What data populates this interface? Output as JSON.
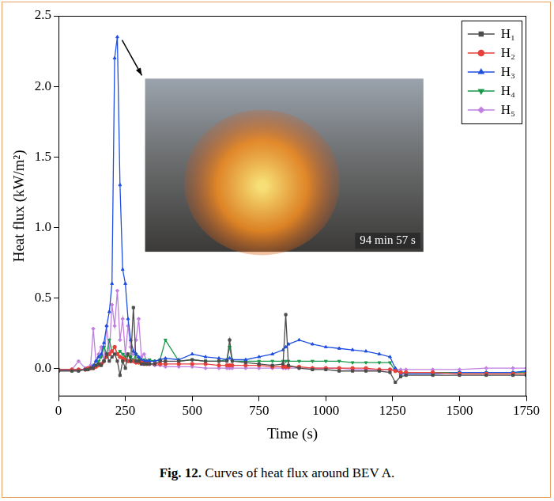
{
  "chart_data": {
    "type": "line",
    "x_label": "Time (s)",
    "y_label": "Heat flux (kW/m²)",
    "annotation": "94 min 57 s",
    "caption": "Fig. 12. Curves of heat flux around BEV A.",
    "xlim": [
      0,
      1750
    ],
    "xticks": [
      0,
      250,
      500,
      750,
      1000,
      1250,
      1500,
      1750
    ],
    "ylim": [
      -0.2,
      2.5
    ],
    "yticks": [
      {
        "value": 0,
        "label": "0.0"
      },
      0.5,
      {
        "value": 1,
        "label": "1.0"
      },
      1.5,
      {
        "value": 2,
        "label": "2.0"
      },
      2.5
    ],
    "grid": false,
    "legend": "upper right",
    "x": [
      0,
      50,
      75,
      100,
      110,
      120,
      130,
      140,
      150,
      160,
      170,
      180,
      190,
      200,
      210,
      220,
      230,
      240,
      250,
      260,
      270,
      280,
      290,
      300,
      310,
      320,
      330,
      340,
      360,
      380,
      400,
      450,
      500,
      550,
      600,
      630,
      640,
      650,
      700,
      750,
      800,
      840,
      850,
      860,
      900,
      950,
      1000,
      1050,
      1100,
      1150,
      1200,
      1240,
      1260,
      1280,
      1300,
      1400,
      1500,
      1600,
      1700,
      1750
    ],
    "series": [
      {
        "name": "H₁",
        "color": "#4d4d4d",
        "marker": "square",
        "values": [
          -0.02,
          -0.02,
          -0.02,
          -0.01,
          -0.01,
          0,
          0,
          0.02,
          0.03,
          0.02,
          0.05,
          0.1,
          0.05,
          0.08,
          0.1,
          0.05,
          -0.05,
          0.05,
          0,
          0.1,
          0.05,
          0.43,
          0.05,
          0.05,
          0.03,
          0.03,
          0.03,
          0.03,
          0.03,
          0.05,
          0.05,
          0.05,
          0.06,
          0.05,
          0.05,
          0.05,
          0.2,
          0.05,
          0.04,
          0.03,
          0.02,
          0.03,
          0.38,
          0.02,
          0,
          -0.01,
          -0.01,
          -0.02,
          -0.02,
          -0.02,
          -0.02,
          -0.03,
          -0.1,
          -0.06,
          -0.05,
          -0.05,
          -0.05,
          -0.05,
          -0.05,
          -0.05
        ]
      },
      {
        "name": "H₂",
        "color": "#e8413a",
        "marker": "circle",
        "values": [
          -0.01,
          -0.01,
          -0.01,
          -0.01,
          0,
          0,
          0,
          0.01,
          0.02,
          0.03,
          0.05,
          0.08,
          0.1,
          0.12,
          0.15,
          0.1,
          0.08,
          0.07,
          0.06,
          0.05,
          0.05,
          0.05,
          0.04,
          0.04,
          0.04,
          0.03,
          0.03,
          0.03,
          0.03,
          0.03,
          0.03,
          0.03,
          0.03,
          0.03,
          0.02,
          0.02,
          0.02,
          0.02,
          0.02,
          0.02,
          0.01,
          0.01,
          0.01,
          0.01,
          0.01,
          0,
          0,
          0,
          0,
          0,
          -0.01,
          -0.01,
          -0.02,
          -0.03,
          -0.03,
          -0.03,
          -0.04,
          -0.04,
          -0.04,
          -0.04
        ]
      },
      {
        "name": "H₃",
        "color": "#1f4fe0",
        "marker": "triangle",
        "values": [
          -0.01,
          -0.01,
          -0.01,
          -0.01,
          -0.01,
          0,
          0.02,
          0.05,
          0.08,
          0.1,
          0.18,
          0.3,
          0.4,
          0.6,
          2.2,
          2.35,
          1.3,
          0.7,
          0.6,
          0.35,
          0.2,
          0.12,
          0.1,
          0.08,
          0.06,
          0.05,
          0.05,
          0.05,
          0.05,
          0.06,
          0.07,
          0.06,
          0.1,
          0.08,
          0.07,
          0.06,
          0.07,
          0.06,
          0.06,
          0.08,
          0.1,
          0.13,
          0.15,
          0.17,
          0.2,
          0.17,
          0.15,
          0.14,
          0.13,
          0.12,
          0.1,
          0.08,
          0,
          -0.04,
          -0.04,
          -0.04,
          -0.03,
          -0.03,
          -0.03,
          -0.02
        ]
      },
      {
        "name": "H₄",
        "color": "#1a9a4a",
        "marker": "triangle-down",
        "values": [
          -0.01,
          -0.01,
          -0.01,
          -0.01,
          0,
          0,
          0.01,
          0.02,
          0.05,
          0.08,
          0.15,
          0.1,
          0.2,
          0.12,
          0.15,
          0.1,
          0.12,
          0.1,
          0.08,
          0.1,
          0.08,
          0.06,
          0.1,
          0.07,
          0.05,
          0.06,
          0.05,
          0.06,
          0.05,
          0.06,
          0.2,
          0.05,
          0.06,
          0.05,
          0.05,
          0.06,
          0.15,
          0.05,
          0.05,
          0.05,
          0.05,
          0.05,
          0.05,
          0.05,
          0.05,
          0.05,
          0.05,
          0.05,
          0.04,
          0.04,
          0.04,
          0.04,
          -0.02,
          -0.03,
          -0.03,
          -0.03,
          -0.03,
          -0.03,
          -0.03,
          -0.03
        ]
      },
      {
        "name": "H₅",
        "color": "#c080e0",
        "marker": "diamond",
        "values": [
          -0.01,
          -0.01,
          0.05,
          0,
          0,
          0.02,
          0.28,
          0.05,
          0.1,
          0.15,
          0.05,
          0.3,
          0.1,
          0.45,
          0.3,
          0.55,
          0.2,
          0.35,
          0.1,
          0.3,
          0.15,
          0.1,
          0.2,
          0.35,
          0.08,
          0.1,
          0.05,
          0.03,
          0.02,
          0.02,
          0.01,
          0.01,
          0.01,
          0,
          0,
          0,
          0,
          0,
          0,
          0,
          0,
          0,
          0,
          0,
          0,
          0,
          0,
          0,
          -0.01,
          -0.01,
          -0.01,
          -0.01,
          -0.01,
          -0.01,
          -0.01,
          -0.01,
          -0.01,
          0,
          0,
          0
        ]
      }
    ]
  }
}
